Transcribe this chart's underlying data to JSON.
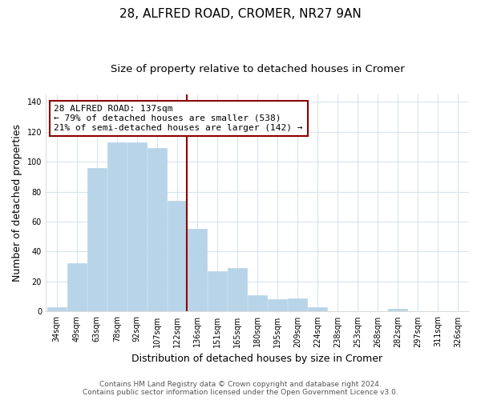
{
  "title": "28, ALFRED ROAD, CROMER, NR27 9AN",
  "subtitle": "Size of property relative to detached houses in Cromer",
  "xlabel": "Distribution of detached houses by size in Cromer",
  "ylabel": "Number of detached properties",
  "categories": [
    "34sqm",
    "49sqm",
    "63sqm",
    "78sqm",
    "92sqm",
    "107sqm",
    "122sqm",
    "136sqm",
    "151sqm",
    "165sqm",
    "180sqm",
    "195sqm",
    "209sqm",
    "224sqm",
    "238sqm",
    "253sqm",
    "268sqm",
    "282sqm",
    "297sqm",
    "311sqm",
    "326sqm"
  ],
  "values": [
    3,
    32,
    96,
    113,
    113,
    109,
    74,
    55,
    27,
    29,
    11,
    8,
    9,
    3,
    0,
    0,
    0,
    2,
    0,
    0,
    0
  ],
  "bar_color": "#b8d4e8",
  "bar_edge_color": "#b8d4e8",
  "highlight_line_color": "#8b0000",
  "annotation_line1": "28 ALFRED ROAD: 137sqm",
  "annotation_line2": "← 79% of detached houses are smaller (538)",
  "annotation_line3": "21% of semi-detached houses are larger (142) →",
  "annotation_box_color": "white",
  "annotation_box_edge_color": "#8b0000",
  "ylim": [
    0,
    145
  ],
  "yticks": [
    0,
    20,
    40,
    60,
    80,
    100,
    120,
    140
  ],
  "footer_line1": "Contains HM Land Registry data © Crown copyright and database right 2024.",
  "footer_line2": "Contains public sector information licensed under the Open Government Licence v3.0.",
  "bg_color": "white",
  "grid_color": "#d8e4ee",
  "title_fontsize": 11,
  "subtitle_fontsize": 9.5,
  "axis_label_fontsize": 9,
  "tick_fontsize": 7,
  "annotation_fontsize": 8,
  "footer_fontsize": 6.5
}
